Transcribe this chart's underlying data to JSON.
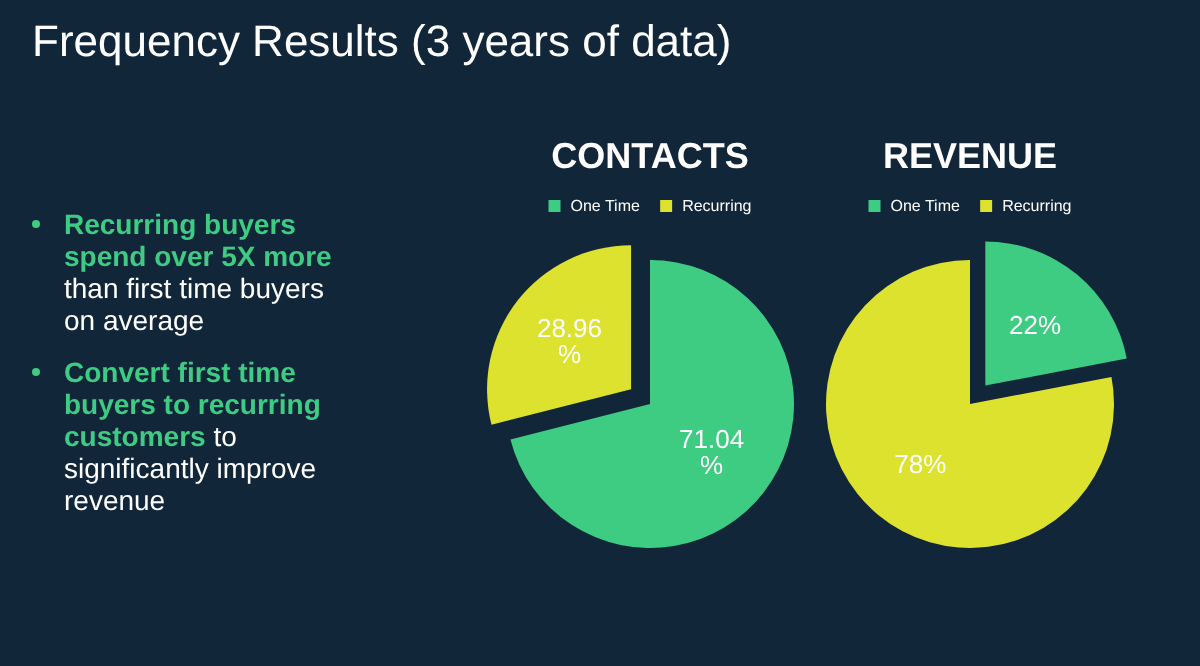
{
  "chart_data": [
    {
      "type": "other",
      "title": "Frequency Results (3 years of data)",
      "annotations": [
        "Recurring buyers spend over 5X more",
        "than first time buyers on average",
        "Convert first time buyers to recurring customers",
        "to significantly improve revenue"
      ]
    },
    {
      "type": "pie",
      "title": "CONTACTS",
      "categories": [
        "One Time",
        "Recurring"
      ],
      "values": [
        71.04,
        28.96
      ],
      "colors": [
        "#3dcc82",
        "#dde22e"
      ],
      "value_labels": [
        "71.04%",
        "28.96%"
      ],
      "legend": "top"
    },
    {
      "type": "pie",
      "title": "REVENUE",
      "categories": [
        "One Time",
        "Recurring"
      ],
      "values": [
        22,
        78
      ],
      "colors": [
        "#3dcc82",
        "#dde22e"
      ],
      "value_labels": [
        "22%",
        "78%"
      ],
      "legend": "top"
    }
  ]
}
